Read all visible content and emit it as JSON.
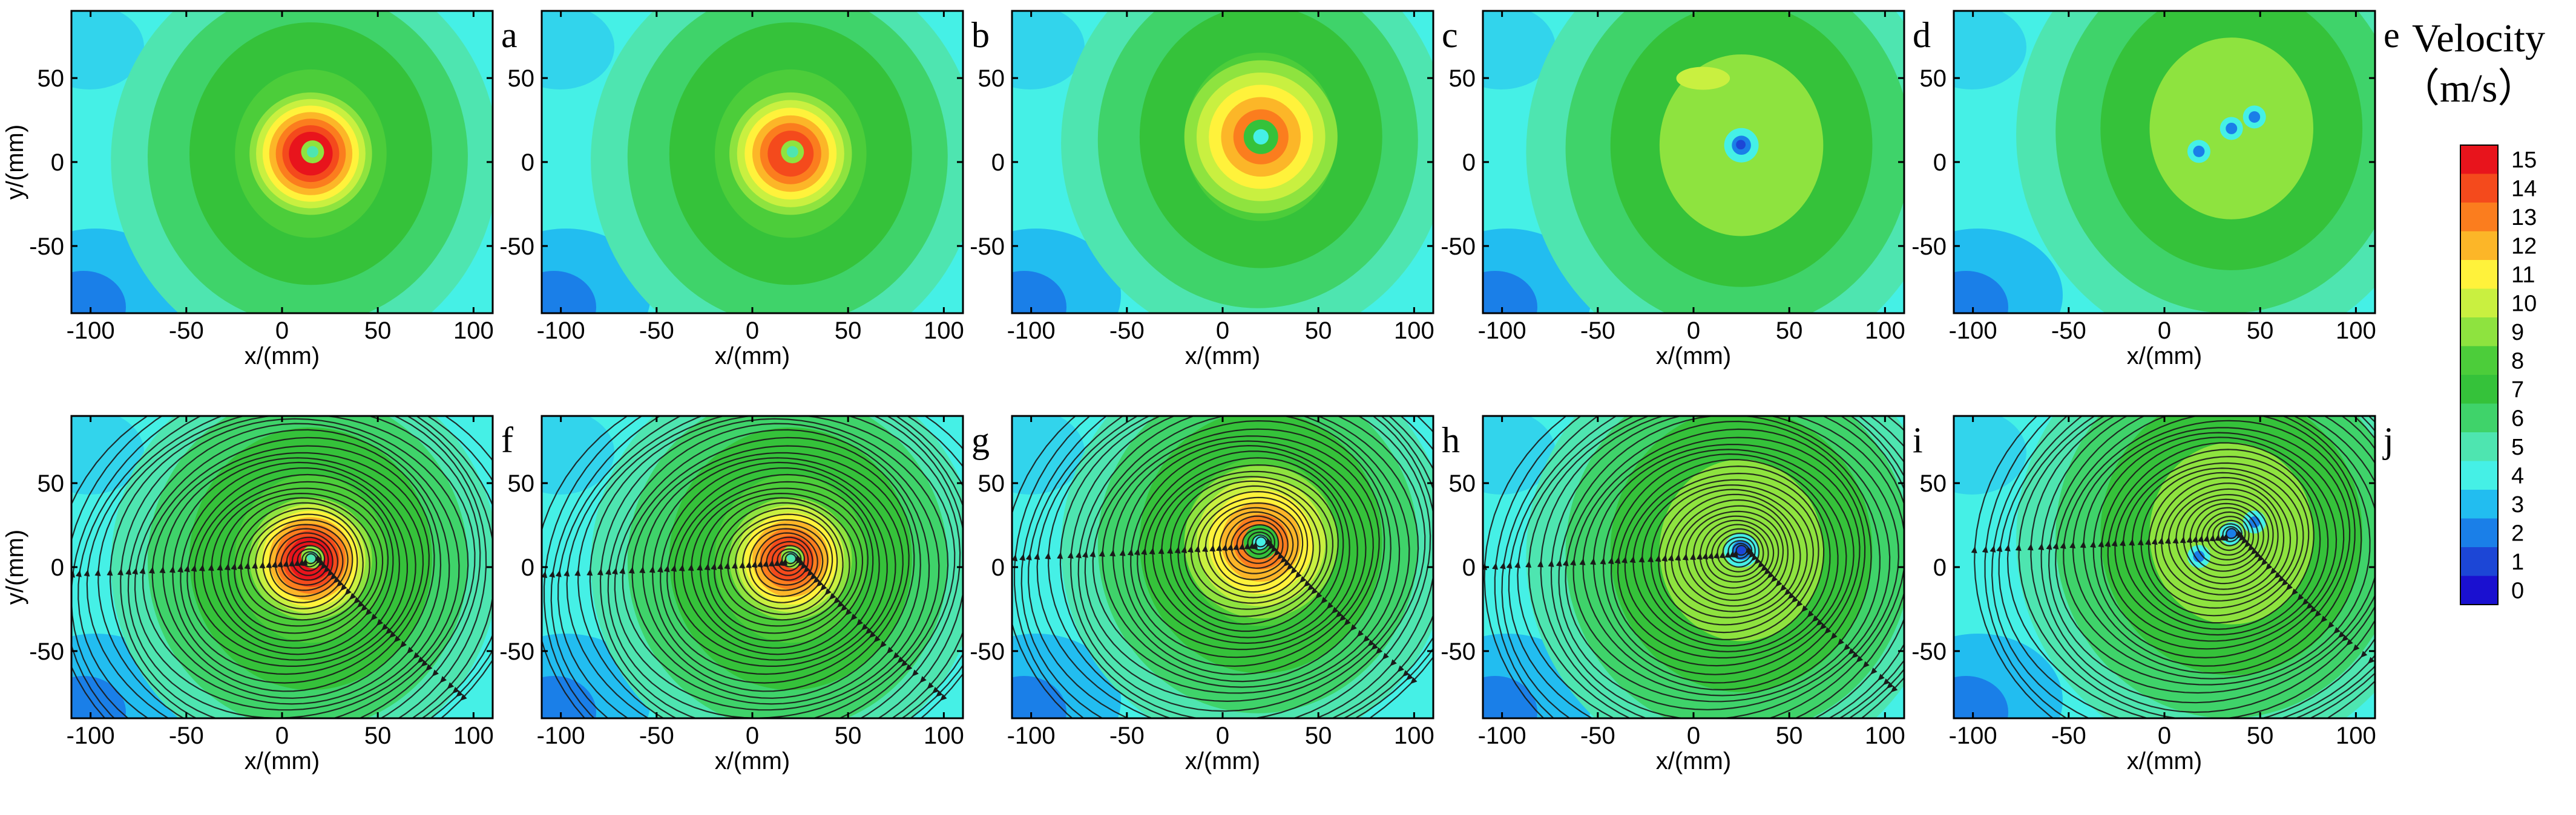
{
  "chart_data": {
    "type": "heatmap",
    "description_units": "Velocity contour maps of a vortex at successive stages; bottom row overlays streamlines",
    "x_axis": {
      "label": "x/(mm)",
      "range": [
        -110,
        110
      ],
      "ticks": [
        -100,
        -50,
        0,
        50,
        100
      ]
    },
    "y_axis": {
      "label": "y/(mm)",
      "range": [
        -90,
        90
      ],
      "ticks": [
        50,
        0,
        -50
      ]
    },
    "colorbar": {
      "title_line1": "Velocity",
      "title_line2": "（m/s）",
      "min": 0,
      "max": 15,
      "levels": [
        15,
        14,
        13,
        12,
        11,
        10,
        9,
        8,
        7,
        6,
        5,
        4,
        3,
        2,
        1,
        0
      ],
      "colors": [
        "#e8141c",
        "#f44a1c",
        "#fb7d1e",
        "#fcb628",
        "#fff23b",
        "#c9f040",
        "#8ee33f",
        "#4ccd3a",
        "#35c23a",
        "#3fd36a",
        "#4ee5b0",
        "#45f0e6",
        "#22bdf0",
        "#1a7fe8",
        "#1c46d6",
        "#1a10d0"
      ]
    },
    "panels": [
      {
        "letter": "a",
        "row": 0,
        "col": 0,
        "center": [
          15,
          5
        ],
        "peak": 15,
        "background": 7,
        "streamlines": false,
        "shape": "core"
      },
      {
        "letter": "b",
        "row": 0,
        "col": 1,
        "center": [
          20,
          5
        ],
        "peak": 14,
        "background": 7,
        "streamlines": false,
        "shape": "core"
      },
      {
        "letter": "c",
        "row": 0,
        "col": 2,
        "center": [
          20,
          15
        ],
        "peak": 13,
        "background": 7,
        "streamlines": false,
        "shape": "ring"
      },
      {
        "letter": "d",
        "row": 0,
        "col": 3,
        "center": [
          25,
          10
        ],
        "peak": 8,
        "background": 8,
        "streamlines": false,
        "shape": "weak"
      },
      {
        "letter": "e",
        "row": 0,
        "col": 4,
        "center": [
          35,
          20
        ],
        "peak": 8,
        "background": 8,
        "streamlines": false,
        "shape": "split"
      },
      {
        "letter": "f",
        "row": 1,
        "col": 0,
        "center": [
          15,
          5
        ],
        "peak": 15,
        "background": 7,
        "streamlines": true,
        "shape": "core"
      },
      {
        "letter": "g",
        "row": 1,
        "col": 1,
        "center": [
          20,
          5
        ],
        "peak": 14,
        "background": 7,
        "streamlines": true,
        "shape": "core"
      },
      {
        "letter": "h",
        "row": 1,
        "col": 2,
        "center": [
          20,
          15
        ],
        "peak": 13,
        "background": 7,
        "streamlines": true,
        "shape": "ring"
      },
      {
        "letter": "i",
        "row": 1,
        "col": 3,
        "center": [
          25,
          10
        ],
        "peak": 8,
        "background": 8,
        "streamlines": true,
        "shape": "weak"
      },
      {
        "letter": "j",
        "row": 1,
        "col": 4,
        "center": [
          35,
          20
        ],
        "peak": 8,
        "background": 8,
        "streamlines": true,
        "shape": "split"
      }
    ]
  }
}
